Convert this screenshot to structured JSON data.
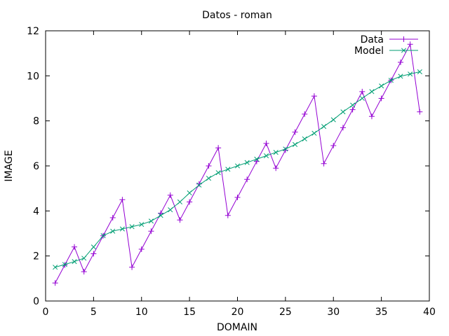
{
  "chart_data": {
    "type": "line",
    "title": "Datos - roman",
    "xlabel": "DOMAIN",
    "ylabel": "IMAGE",
    "xlim": [
      0,
      40
    ],
    "ylim": [
      0,
      12
    ],
    "xticks": [
      0,
      5,
      10,
      15,
      20,
      25,
      30,
      35,
      40
    ],
    "yticks": [
      0,
      2,
      4,
      6,
      8,
      10,
      12
    ],
    "grid": false,
    "legend_position": "top-right",
    "x": [
      1,
      2,
      3,
      4,
      5,
      6,
      7,
      8,
      9,
      10,
      11,
      12,
      13,
      14,
      15,
      16,
      17,
      18,
      19,
      20,
      21,
      22,
      23,
      24,
      25,
      26,
      27,
      28,
      29,
      30,
      31,
      32,
      33,
      34,
      35,
      36,
      37,
      38,
      39
    ],
    "series": [
      {
        "name": "Data",
        "color": "#9400d3",
        "marker": "plus",
        "values": [
          0.8,
          1.6,
          2.4,
          1.3,
          2.1,
          2.9,
          3.7,
          4.5,
          1.5,
          2.3,
          3.1,
          3.9,
          4.7,
          3.6,
          4.4,
          5.2,
          6.0,
          6.8,
          3.8,
          4.6,
          5.4,
          6.2,
          7.0,
          5.9,
          6.7,
          7.5,
          8.3,
          9.1,
          6.1,
          6.9,
          7.7,
          8.5,
          9.3,
          8.2,
          9.0,
          9.8,
          10.6,
          11.4,
          8.4
        ]
      },
      {
        "name": "Model",
        "color": "#009e73",
        "marker": "cross",
        "values": [
          1.5,
          1.62,
          1.75,
          1.9,
          2.4,
          2.9,
          3.1,
          3.2,
          3.3,
          3.4,
          3.55,
          3.8,
          4.05,
          4.4,
          4.8,
          5.15,
          5.45,
          5.7,
          5.85,
          6.0,
          6.15,
          6.3,
          6.45,
          6.6,
          6.75,
          6.95,
          7.2,
          7.45,
          7.75,
          8.05,
          8.4,
          8.7,
          9.0,
          9.3,
          9.55,
          9.8,
          9.98,
          10.08,
          10.18
        ]
      }
    ]
  }
}
